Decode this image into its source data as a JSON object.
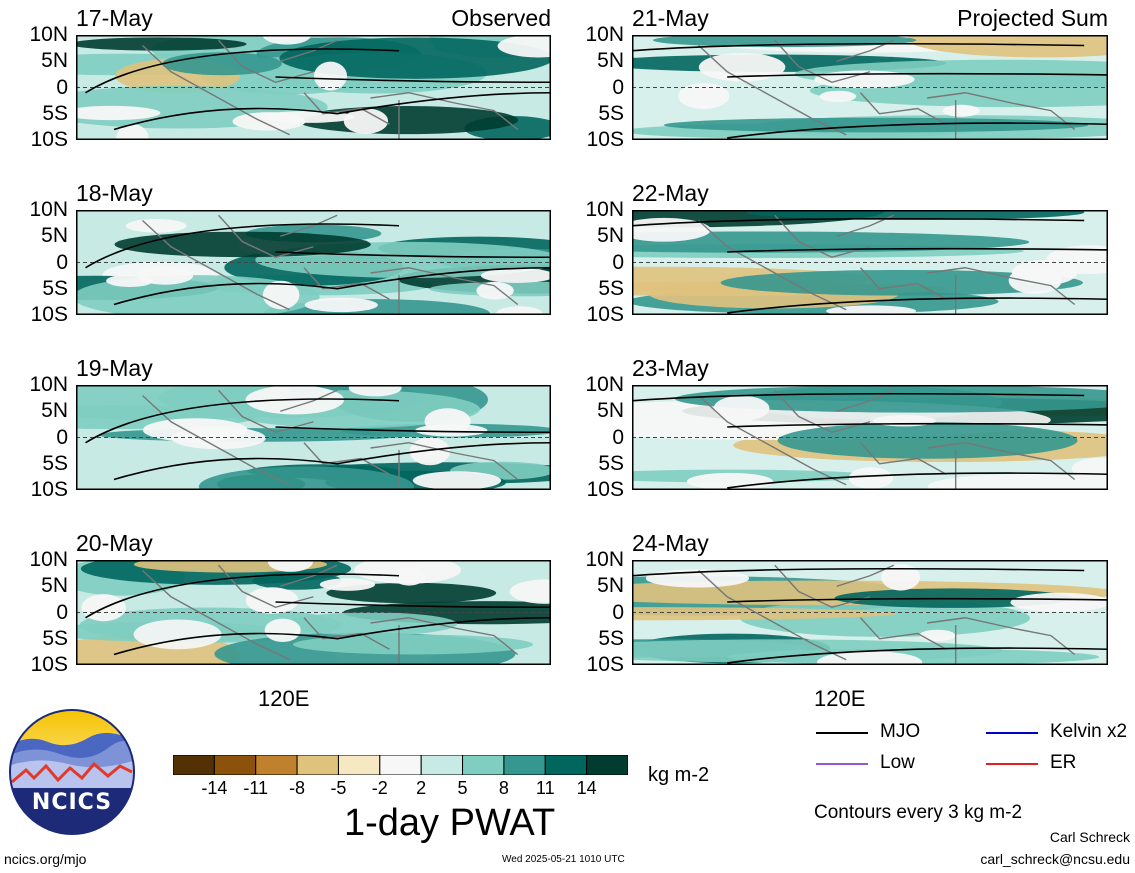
{
  "left_tag": "Observed",
  "right_tag": "Projected Sum",
  "lat_labels": [
    "10N",
    "5N",
    "0",
    "5S",
    "10S"
  ],
  "x_tick_label": "120E",
  "left_panels": [
    {
      "date": "17-May"
    },
    {
      "date": "18-May"
    },
    {
      "date": "19-May"
    },
    {
      "date": "20-May"
    }
  ],
  "right_panels": [
    {
      "date": "21-May"
    },
    {
      "date": "22-May"
    },
    {
      "date": "23-May"
    },
    {
      "date": "24-May"
    }
  ],
  "colorbar": {
    "title": "1-day PWAT",
    "units": "kg m-2",
    "labels": [
      "-14",
      "-11",
      "-8",
      "-5",
      "-2",
      "2",
      "5",
      "8",
      "11",
      "14"
    ],
    "colors": [
      "#543005",
      "#8c510a",
      "#bf812d",
      "#dfc27d",
      "#f6e8c3",
      "#f7f7f7",
      "#c7eae5",
      "#80cdc1",
      "#35978f",
      "#01665e",
      "#003c30"
    ]
  },
  "legend": {
    "items": [
      {
        "label": "MJO",
        "color": "#000000"
      },
      {
        "label": "Kelvin x2",
        "color": "#0000cc"
      },
      {
        "label": "Low",
        "color": "#9955cc"
      },
      {
        "label": "ER",
        "color": "#dd2222"
      }
    ],
    "contours_note": "Contours every 3 kg m-2"
  },
  "footer": {
    "site": "ncics.org/mjo",
    "timestamp": "Wed 2025-05-21 1010 UTC",
    "author": "Carl Schreck",
    "email": "carl_schreck@ncsu.edu"
  },
  "logo_text": "NCICS"
}
